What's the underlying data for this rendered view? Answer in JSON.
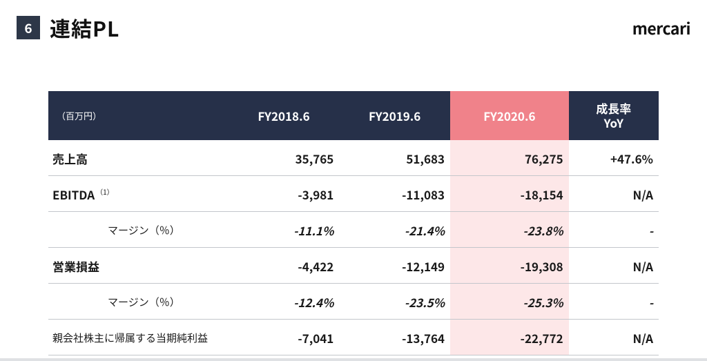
{
  "page": {
    "number": "6",
    "title": "連結PL",
    "brand": "mercari"
  },
  "table": {
    "unit_label": "（百万円）",
    "columns": {
      "fy18": "FY2018.6",
      "fy19": "FY2019.6",
      "fy20": "FY2020.6",
      "yoy_line1": "成長率",
      "yoy_line2": "YoY"
    },
    "rows": [
      {
        "type": "main",
        "label": "売上高",
        "fy18": "35,765",
        "fy19": "51,683",
        "fy20": "76,275",
        "yoy": "+47.6%"
      },
      {
        "type": "main",
        "label": "EBITDA",
        "note": "（1）",
        "fy18": "-3,981",
        "fy19": "-11,083",
        "fy20": "-18,154",
        "yoy": "N/A"
      },
      {
        "type": "sub",
        "label": "マージン（％）",
        "fy18": "-11.1%",
        "fy19": "-21.4%",
        "fy20": "-23.8%",
        "yoy": "-"
      },
      {
        "type": "main",
        "label": "営業損益",
        "fy18": "-4,422",
        "fy19": "-12,149",
        "fy20": "-19,308",
        "yoy": "N/A"
      },
      {
        "type": "sub",
        "label": "マージン（％）",
        "fy18": "-12.4%",
        "fy19": "-23.5%",
        "fy20": "-25.3%",
        "yoy": "-"
      },
      {
        "type": "main",
        "label": "親会社株主に帰属する当期純利益",
        "fy18": "-7,041",
        "fy19": "-13,764",
        "fy20": "-22,772",
        "yoy": "N/A"
      }
    ],
    "highlight_column": "fy20",
    "header_bg": "#263049",
    "highlight_header_bg": "#f0828a",
    "highlight_cell_bg": "#fde7e8",
    "border_color": "#c3c6cb"
  }
}
